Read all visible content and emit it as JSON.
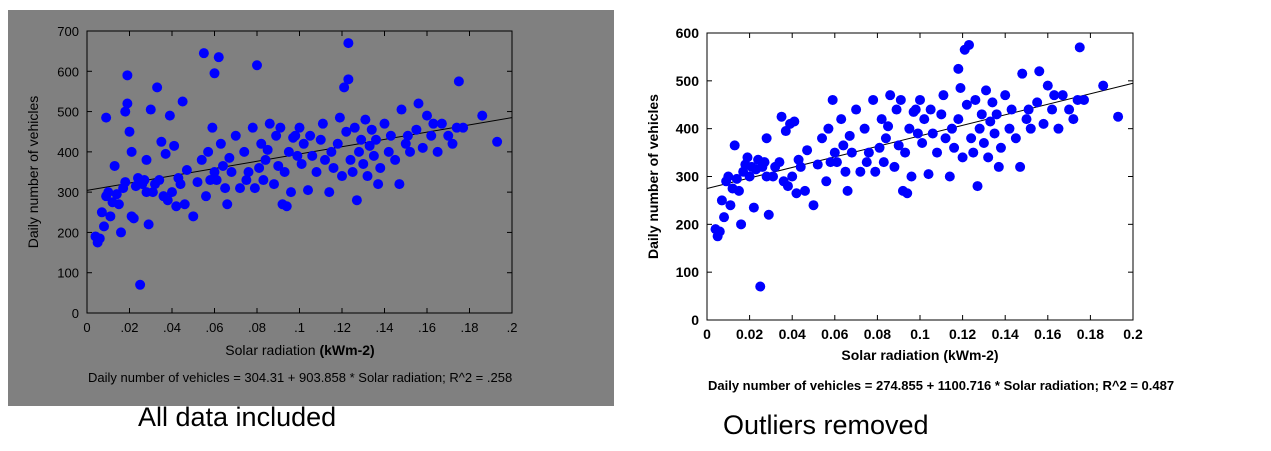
{
  "charts": [
    {
      "x_tick_labels": [
        "0",
        ".02",
        ".04",
        ".06",
        ".08",
        ".1",
        ".12",
        ".14",
        ".16",
        ".18",
        ".2"
      ],
      "y_tick_labels": [
        "0",
        "100",
        "200",
        "300",
        "400",
        "500",
        "600",
        "700"
      ],
      "equation": "Daily number of vehicles = 304.31 + 903.858 * Solar radiation; R^2 = .258",
      "caption": "All data included"
    },
    {
      "x_tick_labels": [
        "0",
        "0.02",
        "0.04",
        "0.06",
        "0.08",
        "0.1",
        "0.12",
        "0.14",
        "0.16",
        "0.18",
        "0.2"
      ],
      "y_tick_labels": [
        "0",
        "100",
        "200",
        "300",
        "400",
        "500",
        "600"
      ],
      "equation": "Daily number of vehicles = 274.855 + 1100.716 * Solar radiation; R^2 = 0.487",
      "caption": "Outliers removed"
    }
  ],
  "colors": {
    "panel_left_bg": "#808080",
    "panel_right_bg": "#ffffff",
    "points": "#0000ff",
    "fit_line": "#000000"
  },
  "chart_data": [
    {
      "type": "scatter",
      "xlabel": "Solar radiation",
      "xlabel_unit": "(kWm-2)",
      "ylabel": "Daily number of vehicles",
      "xlim": [
        0,
        0.2
      ],
      "ylim": [
        0,
        700
      ],
      "x_ticks": [
        0,
        0.02,
        0.04,
        0.06,
        0.08,
        0.1,
        0.12,
        0.14,
        0.16,
        0.18,
        0.2
      ],
      "y_ticks": [
        0,
        100,
        200,
        300,
        400,
        500,
        600,
        700
      ],
      "grid": false,
      "fit_line": {
        "intercept": 304.31,
        "slope": 903.858,
        "r2": 0.258
      },
      "points": [
        [
          0.004,
          190
        ],
        [
          0.005,
          175
        ],
        [
          0.006,
          185
        ],
        [
          0.007,
          250
        ],
        [
          0.008,
          215
        ],
        [
          0.009,
          290
        ],
        [
          0.009,
          485
        ],
        [
          0.01,
          300
        ],
        [
          0.011,
          240
        ],
        [
          0.012,
          275
        ],
        [
          0.013,
          365
        ],
        [
          0.014,
          295
        ],
        [
          0.015,
          270
        ],
        [
          0.016,
          200
        ],
        [
          0.017,
          310
        ],
        [
          0.018,
          325
        ],
        [
          0.018,
          500
        ],
        [
          0.019,
          520
        ],
        [
          0.019,
          590
        ],
        [
          0.02,
          450
        ],
        [
          0.021,
          400
        ],
        [
          0.021,
          240
        ],
        [
          0.022,
          235
        ],
        [
          0.023,
          315
        ],
        [
          0.024,
          335
        ],
        [
          0.025,
          70
        ],
        [
          0.026,
          320
        ],
        [
          0.027,
          330
        ],
        [
          0.028,
          300
        ],
        [
          0.028,
          380
        ],
        [
          0.029,
          220
        ],
        [
          0.03,
          505
        ],
        [
          0.031,
          300
        ],
        [
          0.032,
          320
        ],
        [
          0.033,
          560
        ],
        [
          0.034,
          330
        ],
        [
          0.035,
          425
        ],
        [
          0.036,
          290
        ],
        [
          0.037,
          395
        ],
        [
          0.038,
          280
        ],
        [
          0.039,
          490
        ],
        [
          0.04,
          300
        ],
        [
          0.041,
          415
        ],
        [
          0.042,
          265
        ],
        [
          0.043,
          335
        ],
        [
          0.044,
          320
        ],
        [
          0.045,
          525
        ],
        [
          0.046,
          270
        ],
        [
          0.047,
          355
        ],
        [
          0.05,
          240
        ],
        [
          0.052,
          325
        ],
        [
          0.054,
          380
        ],
        [
          0.055,
          645
        ],
        [
          0.056,
          290
        ],
        [
          0.057,
          400
        ],
        [
          0.058,
          330
        ],
        [
          0.059,
          460
        ],
        [
          0.06,
          595
        ],
        [
          0.06,
          350
        ],
        [
          0.061,
          330
        ],
        [
          0.062,
          635
        ],
        [
          0.063,
          420
        ],
        [
          0.064,
          365
        ],
        [
          0.065,
          310
        ],
        [
          0.066,
          270
        ],
        [
          0.067,
          385
        ],
        [
          0.068,
          350
        ],
        [
          0.07,
          440
        ],
        [
          0.072,
          310
        ],
        [
          0.074,
          400
        ],
        [
          0.075,
          330
        ],
        [
          0.076,
          350
        ],
        [
          0.078,
          460
        ],
        [
          0.079,
          310
        ],
        [
          0.08,
          615
        ],
        [
          0.081,
          360
        ],
        [
          0.082,
          420
        ],
        [
          0.083,
          330
        ],
        [
          0.084,
          380
        ],
        [
          0.085,
          405
        ],
        [
          0.086,
          470
        ],
        [
          0.088,
          320
        ],
        [
          0.089,
          440
        ],
        [
          0.09,
          365
        ],
        [
          0.091,
          460
        ],
        [
          0.092,
          270
        ],
        [
          0.093,
          350
        ],
        [
          0.094,
          265
        ],
        [
          0.095,
          400
        ],
        [
          0.096,
          300
        ],
        [
          0.097,
          435
        ],
        [
          0.098,
          440
        ],
        [
          0.099,
          390
        ],
        [
          0.1,
          460
        ],
        [
          0.101,
          370
        ],
        [
          0.102,
          420
        ],
        [
          0.104,
          305
        ],
        [
          0.105,
          440
        ],
        [
          0.106,
          390
        ],
        [
          0.108,
          350
        ],
        [
          0.11,
          430
        ],
        [
          0.111,
          470
        ],
        [
          0.112,
          380
        ],
        [
          0.114,
          300
        ],
        [
          0.115,
          400
        ],
        [
          0.116,
          360
        ],
        [
          0.118,
          420
        ],
        [
          0.119,
          485
        ],
        [
          0.12,
          340
        ],
        [
          0.121,
          560
        ],
        [
          0.122,
          450
        ],
        [
          0.123,
          670
        ],
        [
          0.123,
          580
        ],
        [
          0.124,
          380
        ],
        [
          0.125,
          350
        ],
        [
          0.126,
          460
        ],
        [
          0.127,
          280
        ],
        [
          0.128,
          400
        ],
        [
          0.129,
          430
        ],
        [
          0.13,
          370
        ],
        [
          0.131,
          480
        ],
        [
          0.132,
          340
        ],
        [
          0.133,
          415
        ],
        [
          0.134,
          455
        ],
        [
          0.135,
          390
        ],
        [
          0.136,
          430
        ],
        [
          0.137,
          320
        ],
        [
          0.138,
          360
        ],
        [
          0.14,
          470
        ],
        [
          0.142,
          400
        ],
        [
          0.143,
          440
        ],
        [
          0.145,
          380
        ],
        [
          0.147,
          320
        ],
        [
          0.148,
          505
        ],
        [
          0.15,
          420
        ],
        [
          0.151,
          440
        ],
        [
          0.152,
          400
        ],
        [
          0.155,
          455
        ],
        [
          0.156,
          520
        ],
        [
          0.158,
          410
        ],
        [
          0.16,
          490
        ],
        [
          0.162,
          440
        ],
        [
          0.163,
          470
        ],
        [
          0.165,
          400
        ],
        [
          0.167,
          470
        ],
        [
          0.17,
          440
        ],
        [
          0.172,
          420
        ],
        [
          0.174,
          460
        ],
        [
          0.175,
          575
        ],
        [
          0.177,
          460
        ],
        [
          0.186,
          490
        ],
        [
          0.193,
          425
        ]
      ]
    },
    {
      "type": "scatter",
      "xlabel": "Solar radiation",
      "xlabel_unit": "(kWm-2)",
      "ylabel": "Daily number of vehicles",
      "xlim": [
        0,
        0.2
      ],
      "ylim": [
        0,
        600
      ],
      "x_ticks": [
        0,
        0.02,
        0.04,
        0.06,
        0.08,
        0.1,
        0.12,
        0.14,
        0.16,
        0.18,
        0.2
      ],
      "y_ticks": [
        0,
        100,
        200,
        300,
        400,
        500,
        600
      ],
      "grid": false,
      "fit_line": {
        "intercept": 274.855,
        "slope": 1100.716,
        "r2": 0.487
      },
      "points": [
        [
          0.004,
          190
        ],
        [
          0.005,
          175
        ],
        [
          0.006,
          185
        ],
        [
          0.007,
          250
        ],
        [
          0.008,
          215
        ],
        [
          0.009,
          290
        ],
        [
          0.01,
          300
        ],
        [
          0.011,
          240
        ],
        [
          0.012,
          275
        ],
        [
          0.013,
          365
        ],
        [
          0.014,
          295
        ],
        [
          0.015,
          270
        ],
        [
          0.016,
          200
        ],
        [
          0.017,
          310
        ],
        [
          0.018,
          325
        ],
        [
          0.019,
          340
        ],
        [
          0.02,
          300
        ],
        [
          0.021,
          320
        ],
        [
          0.022,
          235
        ],
        [
          0.023,
          315
        ],
        [
          0.024,
          335
        ],
        [
          0.025,
          70
        ],
        [
          0.026,
          320
        ],
        [
          0.027,
          330
        ],
        [
          0.028,
          300
        ],
        [
          0.028,
          380
        ],
        [
          0.029,
          220
        ],
        [
          0.031,
          300
        ],
        [
          0.032,
          320
        ],
        [
          0.034,
          330
        ],
        [
          0.035,
          425
        ],
        [
          0.036,
          290
        ],
        [
          0.037,
          395
        ],
        [
          0.038,
          280
        ],
        [
          0.039,
          410
        ],
        [
          0.04,
          300
        ],
        [
          0.041,
          415
        ],
        [
          0.042,
          265
        ],
        [
          0.043,
          335
        ],
        [
          0.044,
          320
        ],
        [
          0.046,
          270
        ],
        [
          0.047,
          355
        ],
        [
          0.05,
          240
        ],
        [
          0.052,
          325
        ],
        [
          0.054,
          380
        ],
        [
          0.056,
          290
        ],
        [
          0.057,
          400
        ],
        [
          0.058,
          330
        ],
        [
          0.059,
          460
        ],
        [
          0.06,
          350
        ],
        [
          0.061,
          330
        ],
        [
          0.063,
          420
        ],
        [
          0.064,
          365
        ],
        [
          0.065,
          310
        ],
        [
          0.066,
          270
        ],
        [
          0.067,
          385
        ],
        [
          0.068,
          350
        ],
        [
          0.07,
          440
        ],
        [
          0.072,
          310
        ],
        [
          0.074,
          400
        ],
        [
          0.075,
          330
        ],
        [
          0.076,
          350
        ],
        [
          0.078,
          460
        ],
        [
          0.079,
          310
        ],
        [
          0.081,
          360
        ],
        [
          0.082,
          420
        ],
        [
          0.083,
          330
        ],
        [
          0.084,
          380
        ],
        [
          0.085,
          405
        ],
        [
          0.086,
          470
        ],
        [
          0.088,
          320
        ],
        [
          0.089,
          440
        ],
        [
          0.09,
          365
        ],
        [
          0.091,
          460
        ],
        [
          0.092,
          270
        ],
        [
          0.093,
          350
        ],
        [
          0.094,
          265
        ],
        [
          0.095,
          400
        ],
        [
          0.096,
          300
        ],
        [
          0.097,
          435
        ],
        [
          0.098,
          440
        ],
        [
          0.099,
          390
        ],
        [
          0.1,
          460
        ],
        [
          0.101,
          370
        ],
        [
          0.102,
          420
        ],
        [
          0.104,
          305
        ],
        [
          0.105,
          440
        ],
        [
          0.106,
          390
        ],
        [
          0.108,
          350
        ],
        [
          0.11,
          430
        ],
        [
          0.111,
          470
        ],
        [
          0.112,
          380
        ],
        [
          0.114,
          300
        ],
        [
          0.115,
          400
        ],
        [
          0.116,
          360
        ],
        [
          0.118,
          420
        ],
        [
          0.118,
          525
        ],
        [
          0.119,
          485
        ],
        [
          0.12,
          340
        ],
        [
          0.121,
          565
        ],
        [
          0.122,
          450
        ],
        [
          0.123,
          575
        ],
        [
          0.124,
          380
        ],
        [
          0.125,
          350
        ],
        [
          0.126,
          460
        ],
        [
          0.127,
          280
        ],
        [
          0.128,
          400
        ],
        [
          0.129,
          430
        ],
        [
          0.13,
          370
        ],
        [
          0.131,
          480
        ],
        [
          0.132,
          340
        ],
        [
          0.133,
          415
        ],
        [
          0.134,
          455
        ],
        [
          0.135,
          390
        ],
        [
          0.136,
          430
        ],
        [
          0.137,
          320
        ],
        [
          0.138,
          360
        ],
        [
          0.14,
          470
        ],
        [
          0.142,
          400
        ],
        [
          0.143,
          440
        ],
        [
          0.145,
          380
        ],
        [
          0.147,
          320
        ],
        [
          0.148,
          515
        ],
        [
          0.15,
          420
        ],
        [
          0.151,
          440
        ],
        [
          0.152,
          400
        ],
        [
          0.155,
          455
        ],
        [
          0.156,
          520
        ],
        [
          0.158,
          410
        ],
        [
          0.16,
          490
        ],
        [
          0.162,
          440
        ],
        [
          0.163,
          470
        ],
        [
          0.165,
          400
        ],
        [
          0.167,
          470
        ],
        [
          0.17,
          440
        ],
        [
          0.172,
          420
        ],
        [
          0.174,
          460
        ],
        [
          0.175,
          570
        ],
        [
          0.177,
          460
        ],
        [
          0.186,
          490
        ],
        [
          0.193,
          425
        ]
      ]
    }
  ]
}
